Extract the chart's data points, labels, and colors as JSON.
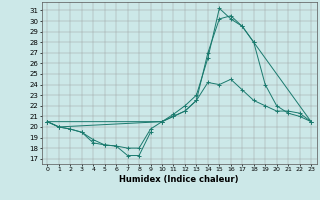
{
  "xlabel": "Humidex (Indice chaleur)",
  "xlim": [
    -0.5,
    23.5
  ],
  "ylim": [
    16.5,
    31.8
  ],
  "yticks": [
    17,
    18,
    19,
    20,
    21,
    22,
    23,
    24,
    25,
    26,
    27,
    28,
    29,
    30,
    31
  ],
  "xticks": [
    0,
    1,
    2,
    3,
    4,
    5,
    6,
    7,
    8,
    9,
    10,
    11,
    12,
    13,
    14,
    15,
    16,
    17,
    18,
    19,
    20,
    21,
    22,
    23
  ],
  "bg_color": "#cce8e8",
  "line_color": "#1a7a6e",
  "lines": [
    {
      "x": [
        0,
        1,
        2,
        3,
        4,
        5,
        6,
        7,
        8,
        9
      ],
      "y": [
        20.5,
        20.0,
        19.8,
        19.5,
        18.5,
        18.3,
        18.2,
        17.3,
        17.3,
        19.5
      ]
    },
    {
      "x": [
        0,
        1,
        2,
        3,
        4,
        5,
        6,
        7,
        8,
        9,
        10,
        11,
        12,
        13,
        14,
        15,
        16,
        17,
        18,
        19,
        20,
        21,
        22,
        23
      ],
      "y": [
        20.5,
        20.0,
        19.8,
        19.5,
        18.8,
        18.3,
        18.2,
        18.0,
        18.0,
        19.8,
        20.5,
        21.0,
        21.5,
        22.5,
        24.2,
        24.0,
        24.5,
        23.5,
        22.5,
        22.0,
        21.5,
        21.5,
        21.3,
        20.5
      ]
    },
    {
      "x": [
        0,
        10,
        11,
        12,
        13,
        14,
        15,
        16,
        17,
        18,
        19,
        20,
        21,
        22,
        23
      ],
      "y": [
        20.5,
        20.5,
        21.2,
        22.0,
        23.0,
        26.5,
        31.2,
        30.2,
        29.5,
        28.0,
        24.0,
        22.0,
        21.3,
        21.0,
        20.5
      ]
    },
    {
      "x": [
        0,
        1,
        10,
        11,
        12,
        13,
        14,
        15,
        16,
        17,
        18,
        23
      ],
      "y": [
        20.5,
        20.0,
        20.5,
        21.0,
        21.5,
        22.5,
        27.0,
        30.2,
        30.5,
        29.5,
        28.0,
        20.5
      ]
    }
  ]
}
